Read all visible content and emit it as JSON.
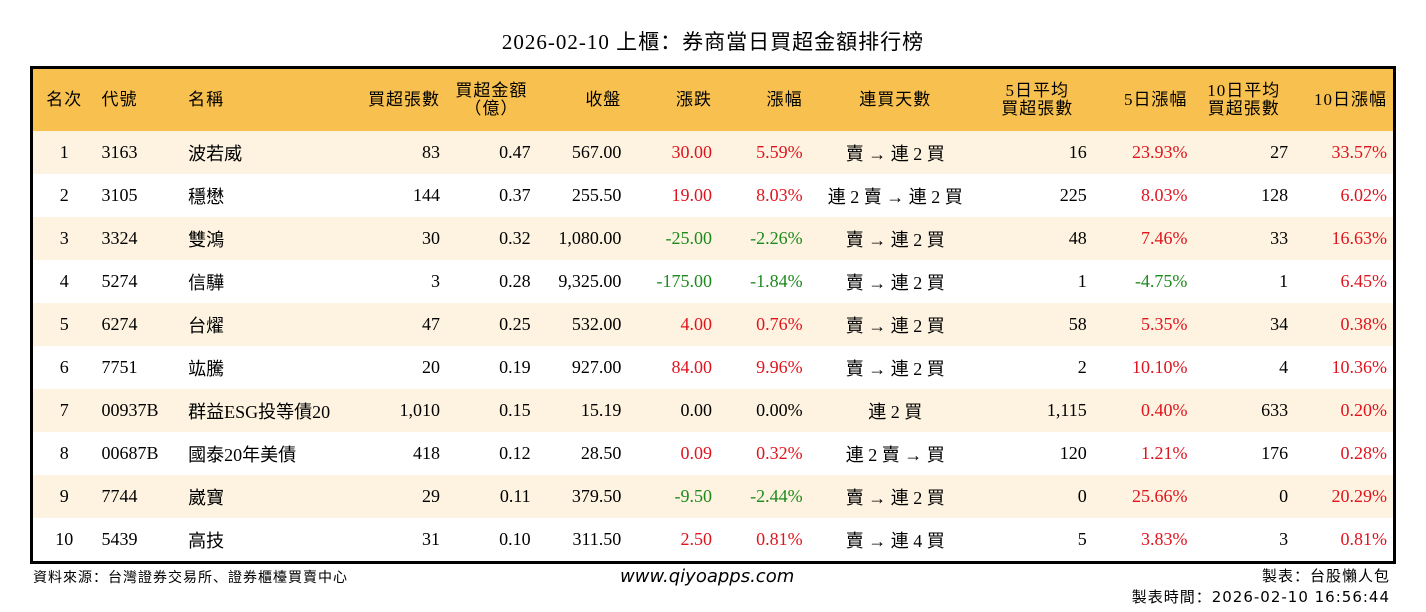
{
  "title": "2026-02-10 上櫃：券商當日買超金額排行榜",
  "colors": {
    "header_bg": "#F7C04F",
    "stripe_bg": "#FDF3E0",
    "up": "#E0141E",
    "down": "#1C8A1C"
  },
  "columns": [
    {
      "key": "rank",
      "label": "名次"
    },
    {
      "key": "code",
      "label": "代號"
    },
    {
      "key": "name",
      "label": "名稱"
    },
    {
      "key": "net_buy_lots",
      "label": "買超張數"
    },
    {
      "key": "net_buy_amount",
      "label": "買超金額\n（億）"
    },
    {
      "key": "close",
      "label": "收盤"
    },
    {
      "key": "change",
      "label": "漲跌"
    },
    {
      "key": "change_pct",
      "label": "漲幅"
    },
    {
      "key": "streak",
      "label": "連買天數"
    },
    {
      "key": "avg5_lots",
      "label": "5日平均\n買超張數"
    },
    {
      "key": "pct5",
      "label": "5日漲幅"
    },
    {
      "key": "avg10_lots",
      "label": "10日平均\n買超張數"
    },
    {
      "key": "pct10",
      "label": "10日漲幅"
    }
  ],
  "rows": [
    {
      "rank": "1",
      "code": "3163",
      "name": "波若威",
      "net_buy_lots": "83",
      "net_buy_amount": "0.47",
      "close": "567.00",
      "change": "30.00",
      "change_pct": "5.59%",
      "streak": "賣 → 連 2 買",
      "avg5_lots": "16",
      "pct5": "23.93%",
      "avg10_lots": "27",
      "pct10": "33.57%",
      "change_dir": "up",
      "pct5_dir": "up",
      "pct10_dir": "up"
    },
    {
      "rank": "2",
      "code": "3105",
      "name": "穩懋",
      "net_buy_lots": "144",
      "net_buy_amount": "0.37",
      "close": "255.50",
      "change": "19.00",
      "change_pct": "8.03%",
      "streak": "連 2 賣 → 連 2 買",
      "avg5_lots": "225",
      "pct5": "8.03%",
      "avg10_lots": "128",
      "pct10": "6.02%",
      "change_dir": "up",
      "pct5_dir": "up",
      "pct10_dir": "up"
    },
    {
      "rank": "3",
      "code": "3324",
      "name": "雙鴻",
      "net_buy_lots": "30",
      "net_buy_amount": "0.32",
      "close": "1,080.00",
      "change": "-25.00",
      "change_pct": "-2.26%",
      "streak": "賣 → 連 2 買",
      "avg5_lots": "48",
      "pct5": "7.46%",
      "avg10_lots": "33",
      "pct10": "16.63%",
      "change_dir": "down",
      "pct5_dir": "up",
      "pct10_dir": "up"
    },
    {
      "rank": "4",
      "code": "5274",
      "name": "信驊",
      "net_buy_lots": "3",
      "net_buy_amount": "0.28",
      "close": "9,325.00",
      "change": "-175.00",
      "change_pct": "-1.84%",
      "streak": "賣 → 連 2 買",
      "avg5_lots": "1",
      "pct5": "-4.75%",
      "avg10_lots": "1",
      "pct10": "6.45%",
      "change_dir": "down",
      "pct5_dir": "down",
      "pct10_dir": "up"
    },
    {
      "rank": "5",
      "code": "6274",
      "name": "台燿",
      "net_buy_lots": "47",
      "net_buy_amount": "0.25",
      "close": "532.00",
      "change": "4.00",
      "change_pct": "0.76%",
      "streak": "賣 → 連 2 買",
      "avg5_lots": "58",
      "pct5": "5.35%",
      "avg10_lots": "34",
      "pct10": "0.38%",
      "change_dir": "up",
      "pct5_dir": "up",
      "pct10_dir": "up"
    },
    {
      "rank": "6",
      "code": "7751",
      "name": "竑騰",
      "net_buy_lots": "20",
      "net_buy_amount": "0.19",
      "close": "927.00",
      "change": "84.00",
      "change_pct": "9.96%",
      "streak": "賣 → 連 2 買",
      "avg5_lots": "2",
      "pct5": "10.10%",
      "avg10_lots": "4",
      "pct10": "10.36%",
      "change_dir": "up",
      "pct5_dir": "up",
      "pct10_dir": "up"
    },
    {
      "rank": "7",
      "code": "00937B",
      "name": "群益ESG投等債20",
      "net_buy_lots": "1,010",
      "net_buy_amount": "0.15",
      "close": "15.19",
      "change": "0.00",
      "change_pct": "0.00%",
      "streak": "連 2 買",
      "avg5_lots": "1,115",
      "pct5": "0.40%",
      "avg10_lots": "633",
      "pct10": "0.20%",
      "change_dir": "flat",
      "pct5_dir": "up",
      "pct10_dir": "up"
    },
    {
      "rank": "8",
      "code": "00687B",
      "name": "國泰20年美債",
      "net_buy_lots": "418",
      "net_buy_amount": "0.12",
      "close": "28.50",
      "change": "0.09",
      "change_pct": "0.32%",
      "streak": "連 2 賣 → 買",
      "avg5_lots": "120",
      "pct5": "1.21%",
      "avg10_lots": "176",
      "pct10": "0.28%",
      "change_dir": "up",
      "pct5_dir": "up",
      "pct10_dir": "up"
    },
    {
      "rank": "9",
      "code": "7744",
      "name": "崴寶",
      "net_buy_lots": "29",
      "net_buy_amount": "0.11",
      "close": "379.50",
      "change": "-9.50",
      "change_pct": "-2.44%",
      "streak": "賣 → 連 2 買",
      "avg5_lots": "0",
      "pct5": "25.66%",
      "avg10_lots": "0",
      "pct10": "20.29%",
      "change_dir": "down",
      "pct5_dir": "up",
      "pct10_dir": "up"
    },
    {
      "rank": "10",
      "code": "5439",
      "name": "高技",
      "net_buy_lots": "31",
      "net_buy_amount": "0.10",
      "close": "311.50",
      "change": "2.50",
      "change_pct": "0.81%",
      "streak": "賣 → 連 4 買",
      "avg5_lots": "5",
      "pct5": "3.83%",
      "avg10_lots": "3",
      "pct10": "0.81%",
      "change_dir": "up",
      "pct5_dir": "up",
      "pct10_dir": "up"
    }
  ],
  "footer": {
    "source": "資料來源：台灣證券交易所、證券櫃檯買賣中心",
    "website": "www.qiyoapps.com",
    "maker": "製表：台股懶人包",
    "made_time": "製表時間：2026-02-10 16:56:44"
  }
}
